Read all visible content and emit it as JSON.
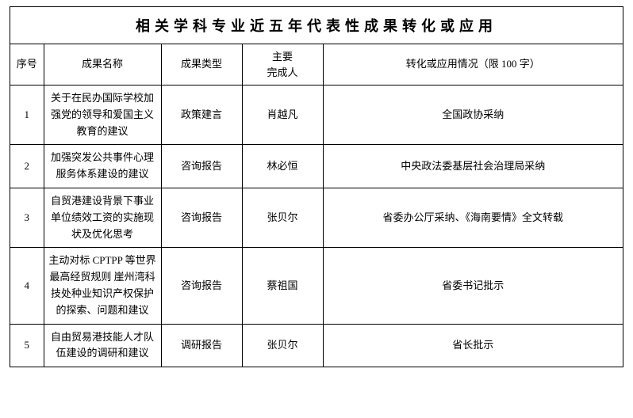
{
  "title": "相关学科专业近五年代表性成果转化或应用",
  "columns": {
    "c0": "序号",
    "c1": "成果名称",
    "c2": "成果类型",
    "c3_line1": "主要",
    "c3_line2": "完成人",
    "c4": "转化或应用情况（限 100 字）"
  },
  "rows": [
    {
      "idx": "1",
      "name": "关于在民办国际学校加强党的领导和爱国主义教育的建议",
      "type": "政策建言",
      "person": "肖越凡",
      "status": "全国政协采纳"
    },
    {
      "idx": "2",
      "name": "加强突发公共事件心理服务体系建设的建议",
      "type": "咨询报告",
      "person": "林必恒",
      "status": "中央政法委基层社会治理局采纳"
    },
    {
      "idx": "3",
      "name": "自贸港建设背景下事业单位绩效工资的实施现状及优化思考",
      "type": "咨询报告",
      "person": "张贝尔",
      "status": "省委办公厅采纳、《海南要情》全文转载"
    },
    {
      "idx": "4",
      "name": "主动对标 CPTPP 等世界最高经贸规则 崖州湾科技处种业知识产权保护的探索、问题和建议",
      "type": "咨询报告",
      "person": "蔡祖国",
      "status": "省委书记批示"
    },
    {
      "idx": "5",
      "name": "自由贸易港技能人才队伍建设的调研和建议",
      "type": "调研报告",
      "person": "张贝尔",
      "status": "省长批示"
    }
  ]
}
